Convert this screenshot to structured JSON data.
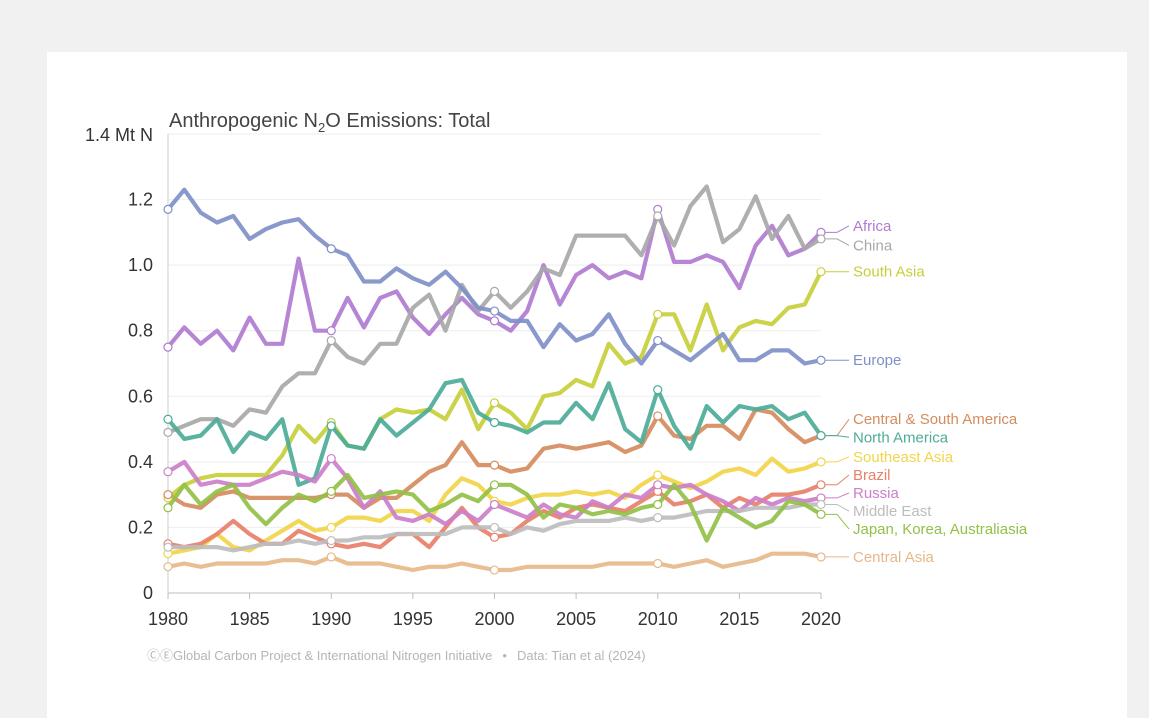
{
  "chart_data": {
    "type": "line",
    "title": "Anthropogenic N₂O Emissions: Total",
    "title_parts": {
      "pre": "Anthropogenic N",
      "sub": "2",
      "post": "O Emissions: Total"
    },
    "ylabel": "",
    "y_unit_label": "1.4 Mt N",
    "ylim": [
      0,
      1.4
    ],
    "xlim": [
      1980,
      2020
    ],
    "x_ticks": [
      1980,
      1985,
      1990,
      1995,
      2000,
      2005,
      2010,
      2015,
      2020
    ],
    "y_ticks": [
      0,
      0.2,
      0.4,
      0.6,
      0.8,
      1.0,
      1.2
    ],
    "y_tick_labels": [
      "0",
      "0.2",
      "0.4",
      "0.6",
      "0.8",
      "1.0",
      "1.2"
    ],
    "grid": true,
    "legend": "direct labels at right end of lines",
    "marker_years": [
      1980,
      1990,
      2000,
      2010,
      2020
    ],
    "x": [
      1980,
      1981,
      1982,
      1983,
      1984,
      1985,
      1986,
      1987,
      1988,
      1989,
      1990,
      1991,
      1992,
      1993,
      1994,
      1995,
      1996,
      1997,
      1998,
      1999,
      2000,
      2001,
      2002,
      2003,
      2004,
      2005,
      2006,
      2007,
      2008,
      2009,
      2010,
      2011,
      2012,
      2013,
      2014,
      2015,
      2016,
      2017,
      2018,
      2019,
      2020
    ],
    "series": [
      {
        "name": "Africa",
        "color": "#b07cd0",
        "label_y": 1.12,
        "values": [
          0.75,
          0.81,
          0.76,
          0.8,
          0.74,
          0.84,
          0.76,
          0.76,
          1.02,
          0.8,
          0.8,
          0.9,
          0.81,
          0.9,
          0.92,
          0.84,
          0.79,
          0.85,
          0.9,
          0.85,
          0.83,
          0.8,
          0.86,
          1.0,
          0.88,
          0.97,
          1.0,
          0.96,
          0.98,
          0.96,
          1.17,
          1.01,
          1.01,
          1.03,
          1.01,
          0.93,
          1.06,
          1.12,
          1.03,
          1.05,
          1.1
        ]
      },
      {
        "name": "China",
        "color": "#a8a8a8",
        "label_y": 1.06,
        "values": [
          0.49,
          0.51,
          0.53,
          0.53,
          0.51,
          0.56,
          0.55,
          0.63,
          0.67,
          0.67,
          0.77,
          0.72,
          0.7,
          0.76,
          0.76,
          0.87,
          0.91,
          0.8,
          0.94,
          0.86,
          0.92,
          0.87,
          0.92,
          0.99,
          0.97,
          1.09,
          1.09,
          1.09,
          1.09,
          1.03,
          1.15,
          1.06,
          1.18,
          1.24,
          1.07,
          1.11,
          1.21,
          1.08,
          1.15,
          1.05,
          1.08
        ]
      },
      {
        "name": "South Asia",
        "color": "#c6cf3a",
        "label_y": 0.98,
        "values": [
          0.29,
          0.33,
          0.35,
          0.36,
          0.36,
          0.36,
          0.36,
          0.42,
          0.51,
          0.46,
          0.52,
          0.45,
          0.44,
          0.53,
          0.56,
          0.55,
          0.56,
          0.53,
          0.62,
          0.5,
          0.58,
          0.55,
          0.5,
          0.6,
          0.61,
          0.65,
          0.63,
          0.76,
          0.7,
          0.72,
          0.85,
          0.85,
          0.74,
          0.88,
          0.74,
          0.81,
          0.83,
          0.82,
          0.87,
          0.88,
          0.98
        ]
      },
      {
        "name": "Europe",
        "color": "#7f90c8",
        "label_y": 0.71,
        "values": [
          1.17,
          1.23,
          1.16,
          1.13,
          1.15,
          1.08,
          1.11,
          1.13,
          1.14,
          1.09,
          1.05,
          1.03,
          0.95,
          0.95,
          0.99,
          0.96,
          0.94,
          0.98,
          0.93,
          0.87,
          0.86,
          0.83,
          0.83,
          0.75,
          0.82,
          0.77,
          0.79,
          0.85,
          0.76,
          0.7,
          0.77,
          0.74,
          0.71,
          0.75,
          0.79,
          0.71,
          0.71,
          0.74,
          0.74,
          0.7,
          0.71
        ]
      },
      {
        "name": "Central & South America",
        "color": "#d58c5e",
        "label_y": 0.53,
        "values": [
          0.3,
          0.27,
          0.26,
          0.3,
          0.31,
          0.29,
          0.29,
          0.29,
          0.29,
          0.29,
          0.3,
          0.3,
          0.26,
          0.29,
          0.29,
          0.33,
          0.37,
          0.39,
          0.46,
          0.39,
          0.39,
          0.37,
          0.38,
          0.44,
          0.45,
          0.44,
          0.45,
          0.46,
          0.43,
          0.45,
          0.54,
          0.48,
          0.47,
          0.51,
          0.51,
          0.47,
          0.56,
          0.55,
          0.5,
          0.46,
          0.48
        ]
      },
      {
        "name": "North America",
        "color": "#4dab98",
        "label_y": 0.475,
        "values": [
          0.53,
          0.47,
          0.48,
          0.53,
          0.43,
          0.49,
          0.47,
          0.53,
          0.33,
          0.35,
          0.51,
          0.45,
          0.44,
          0.53,
          0.48,
          0.52,
          0.56,
          0.64,
          0.65,
          0.55,
          0.52,
          0.51,
          0.49,
          0.52,
          0.52,
          0.58,
          0.53,
          0.64,
          0.5,
          0.46,
          0.62,
          0.51,
          0.44,
          0.57,
          0.52,
          0.57,
          0.56,
          0.57,
          0.53,
          0.55,
          0.48
        ]
      },
      {
        "name": "Southeast Asia",
        "color": "#f2d54a",
        "label_y": 0.415,
        "values": [
          0.12,
          0.13,
          0.14,
          0.18,
          0.14,
          0.13,
          0.16,
          0.19,
          0.22,
          0.19,
          0.2,
          0.23,
          0.23,
          0.22,
          0.25,
          0.25,
          0.22,
          0.3,
          0.35,
          0.33,
          0.28,
          0.27,
          0.29,
          0.3,
          0.3,
          0.31,
          0.3,
          0.31,
          0.29,
          0.33,
          0.36,
          0.34,
          0.32,
          0.34,
          0.37,
          0.38,
          0.36,
          0.41,
          0.37,
          0.38,
          0.4
        ]
      },
      {
        "name": "Brazil",
        "color": "#e8806a",
        "label_y": 0.36,
        "values": [
          0.15,
          0.14,
          0.15,
          0.18,
          0.22,
          0.18,
          0.15,
          0.15,
          0.19,
          0.17,
          0.15,
          0.14,
          0.15,
          0.14,
          0.18,
          0.18,
          0.14,
          0.2,
          0.26,
          0.2,
          0.17,
          0.18,
          0.22,
          0.25,
          0.23,
          0.26,
          0.27,
          0.26,
          0.25,
          0.28,
          0.31,
          0.27,
          0.28,
          0.3,
          0.26,
          0.29,
          0.27,
          0.3,
          0.3,
          0.31,
          0.33
        ]
      },
      {
        "name": "Russia",
        "color": "#cc7fc8",
        "label_y": 0.305,
        "values": [
          0.37,
          0.4,
          0.33,
          0.34,
          0.33,
          0.33,
          0.35,
          0.37,
          0.36,
          0.34,
          0.41,
          0.35,
          0.26,
          0.31,
          0.23,
          0.22,
          0.24,
          0.21,
          0.25,
          0.22,
          0.27,
          0.25,
          0.23,
          0.27,
          0.24,
          0.23,
          0.28,
          0.26,
          0.3,
          0.29,
          0.33,
          0.32,
          0.33,
          0.3,
          0.28,
          0.25,
          0.29,
          0.27,
          0.29,
          0.28,
          0.29
        ]
      },
      {
        "name": "Middle East",
        "color": "#bdbdbd",
        "label_y": 0.25,
        "values": [
          0.14,
          0.14,
          0.14,
          0.14,
          0.13,
          0.14,
          0.15,
          0.15,
          0.16,
          0.15,
          0.16,
          0.16,
          0.17,
          0.17,
          0.18,
          0.18,
          0.18,
          0.18,
          0.2,
          0.2,
          0.2,
          0.18,
          0.2,
          0.19,
          0.21,
          0.22,
          0.22,
          0.22,
          0.23,
          0.22,
          0.23,
          0.23,
          0.24,
          0.25,
          0.25,
          0.25,
          0.26,
          0.26,
          0.26,
          0.27,
          0.27
        ]
      },
      {
        "name": "Japan, Korea, Australiasia",
        "color": "#93c047",
        "label_y": 0.195,
        "values": [
          0.26,
          0.33,
          0.27,
          0.31,
          0.33,
          0.26,
          0.21,
          0.26,
          0.3,
          0.28,
          0.31,
          0.36,
          0.29,
          0.3,
          0.31,
          0.3,
          0.25,
          0.27,
          0.3,
          0.28,
          0.33,
          0.33,
          0.3,
          0.23,
          0.27,
          0.26,
          0.24,
          0.25,
          0.24,
          0.26,
          0.27,
          0.33,
          0.27,
          0.16,
          0.26,
          0.23,
          0.2,
          0.22,
          0.28,
          0.27,
          0.24
        ]
      },
      {
        "name": "Central Asia",
        "color": "#e6b98a",
        "label_y": 0.11,
        "values": [
          0.08,
          0.09,
          0.08,
          0.09,
          0.09,
          0.09,
          0.09,
          0.1,
          0.1,
          0.09,
          0.11,
          0.09,
          0.09,
          0.09,
          0.08,
          0.07,
          0.08,
          0.08,
          0.09,
          0.08,
          0.07,
          0.07,
          0.08,
          0.08,
          0.08,
          0.08,
          0.08,
          0.09,
          0.09,
          0.09,
          0.09,
          0.08,
          0.09,
          0.1,
          0.08,
          0.09,
          0.1,
          0.12,
          0.12,
          0.12,
          0.11
        ]
      }
    ]
  },
  "credit": {
    "icons": "ⒸⒺ",
    "text": "Global Carbon Project & International Nitrogen Initiative",
    "separator": "•",
    "source": "Data: Tian et al (2024)"
  }
}
